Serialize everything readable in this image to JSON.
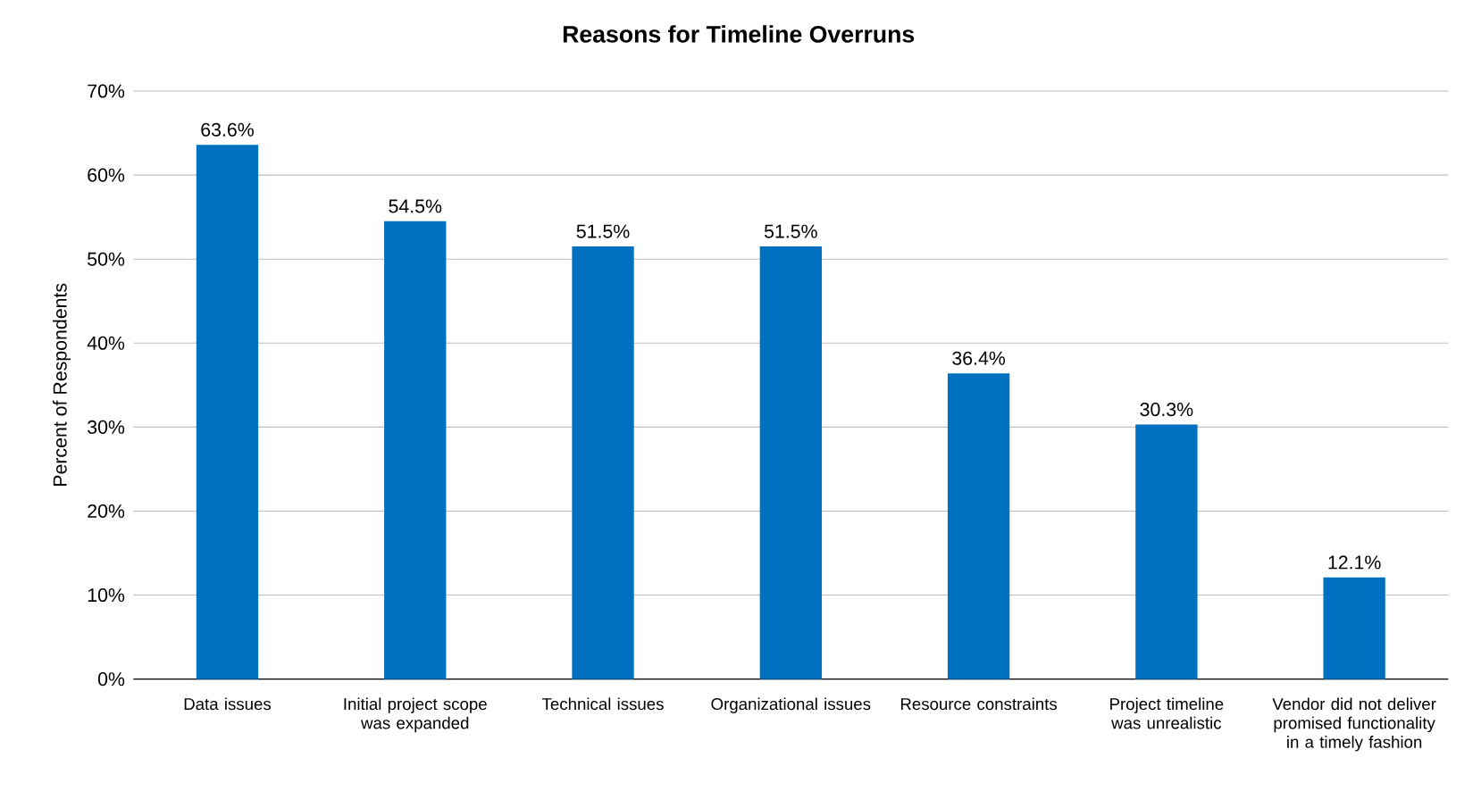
{
  "chart_data": {
    "type": "bar",
    "title": "Reasons for Timeline Overruns",
    "ylabel": "Percent of Respondents",
    "categories": [
      "Data issues",
      "Initial project scope was expanded",
      "Technical issues",
      "Organizational issues",
      "Resource constraints",
      "Project timeline was unrealistic",
      "Vendor did not deliver promised functionality in a timely fashion"
    ],
    "values": [
      63.6,
      54.5,
      51.5,
      51.5,
      36.4,
      30.3,
      12.1
    ],
    "value_labels": [
      "63.6%",
      "54.5%",
      "51.5%",
      "51.5%",
      "36.4%",
      "30.3%",
      "12.1%"
    ],
    "color": "#0070c0",
    "ylim": [
      0,
      70
    ],
    "yticks": [
      {
        "value": 0,
        "label": "0%"
      },
      {
        "value": 10,
        "label": "10%"
      },
      {
        "value": 20,
        "label": "20%"
      },
      {
        "value": 30,
        "label": "30%"
      },
      {
        "value": 40,
        "label": "40%"
      },
      {
        "value": 50,
        "label": "50%"
      },
      {
        "value": 60,
        "label": "60%"
      },
      {
        "value": 70,
        "label": "70%"
      }
    ],
    "grid": "y"
  }
}
